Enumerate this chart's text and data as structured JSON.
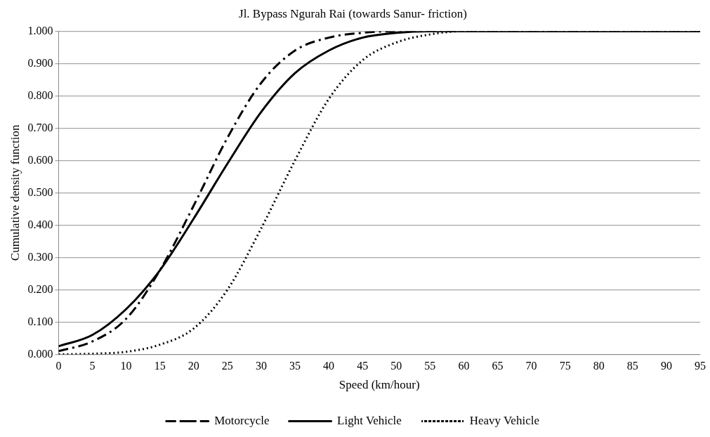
{
  "chart_data": {
    "type": "line",
    "title": "Jl. Bypass Ngurah Rai (towards Sanur- friction)",
    "xlabel": "Speed (km/hour)",
    "ylabel": "Cumulative density function",
    "x": [
      0,
      5,
      10,
      15,
      20,
      25,
      30,
      35,
      40,
      45,
      50,
      55,
      60,
      65,
      70,
      75,
      80,
      85,
      90,
      95
    ],
    "series": [
      {
        "name": "Motorcycle",
        "color": "#000000",
        "line_style": "dashdot",
        "values": [
          0.01,
          0.04,
          0.11,
          0.26,
          0.46,
          0.67,
          0.84,
          0.94,
          0.98,
          0.995,
          1.0,
          1.0,
          1.0,
          1.0,
          1.0,
          1.0,
          1.0,
          1.0,
          1.0,
          1.0
        ]
      },
      {
        "name": "Light Vehicle",
        "color": "#000000",
        "line_style": "solid",
        "values": [
          0.025,
          0.06,
          0.14,
          0.26,
          0.42,
          0.59,
          0.75,
          0.87,
          0.94,
          0.98,
          0.995,
          1.0,
          1.0,
          1.0,
          1.0,
          1.0,
          1.0,
          1.0,
          1.0,
          1.0
        ]
      },
      {
        "name": "Heavy Vehicle",
        "color": "#000000",
        "line_style": "dotted",
        "values": [
          0.0,
          0.002,
          0.008,
          0.03,
          0.08,
          0.2,
          0.39,
          0.6,
          0.79,
          0.91,
          0.965,
          0.99,
          1.0,
          1.0,
          1.0,
          1.0,
          1.0,
          1.0,
          1.0,
          1.0
        ]
      }
    ],
    "xlim": [
      0,
      95
    ],
    "xticks": [
      0,
      5,
      10,
      15,
      20,
      25,
      30,
      35,
      40,
      45,
      50,
      55,
      60,
      65,
      70,
      75,
      80,
      85,
      90,
      95
    ],
    "ylim": [
      0,
      1
    ],
    "yticks": [
      {
        "value": 0,
        "label": "0.000"
      },
      {
        "value": 0.1,
        "label": "0.100"
      },
      {
        "value": 0.2,
        "label": "0.200"
      },
      {
        "value": 0.3,
        "label": "0.300"
      },
      {
        "value": 0.4,
        "label": "0.400"
      },
      {
        "value": 0.5,
        "label": "0.500"
      },
      {
        "value": 0.6,
        "label": "0.600"
      },
      {
        "value": 0.7,
        "label": "0.700"
      },
      {
        "value": 0.8,
        "label": "0.800"
      },
      {
        "value": 0.9,
        "label": "0.900"
      },
      {
        "value": 1,
        "label": "1.000"
      }
    ],
    "grid": "y",
    "legend": "bottom",
    "marker": "none"
  }
}
